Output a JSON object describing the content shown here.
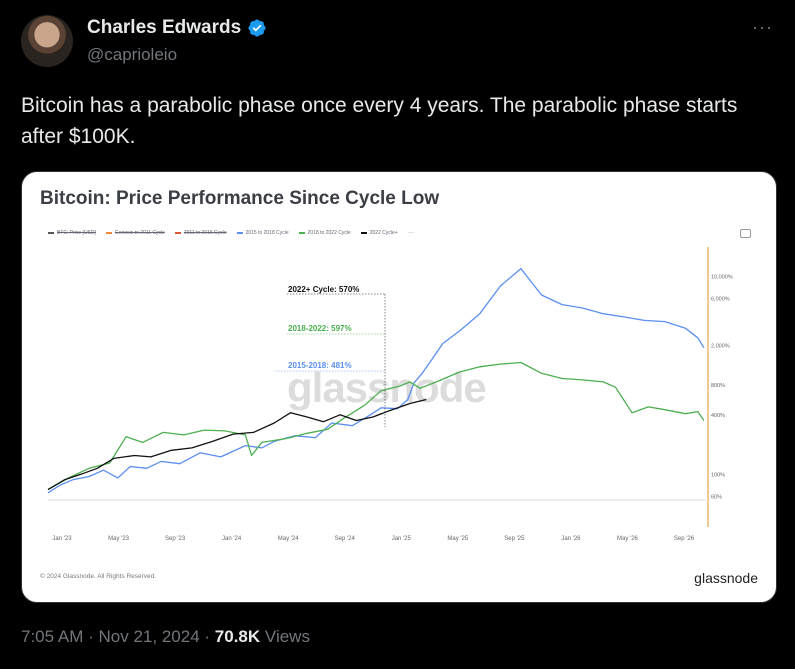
{
  "author": {
    "name": "Charles Edwards",
    "handle": "@caprioleio",
    "verified": true
  },
  "tweet": {
    "text": "Bitcoin has a parabolic phase once every 4 years. The parabolic phase starts after $100K."
  },
  "chart_card": {
    "title": "Bitcoin: Price Performance Since Cycle Low",
    "legend": [
      {
        "label": "BTC: Price [USD]",
        "color": "#555555",
        "struck": true
      },
      {
        "label": "Genesis to 2011 Cycle",
        "color": "#f0883e",
        "struck": true
      },
      {
        "label": "2011 to 2015 Cycle",
        "color": "#e0583a",
        "struck": true
      },
      {
        "label": "2015 to 2018 Cycle",
        "color": "#5b8ff0"
      },
      {
        "label": "2018 to 2022 Cycle",
        "color": "#4caf50"
      },
      {
        "label": "2022 Cycle+",
        "color": "#111111"
      }
    ],
    "watermark": "glassnode",
    "annotations": [
      {
        "label": "2022+ Cycle: 570%",
        "color": "#111111"
      },
      {
        "label": "2018-2022: 597%",
        "color": "#4caf50"
      },
      {
        "label": "2015-2018: 481%",
        "color": "#5b8ff0"
      }
    ],
    "copyright": "© 2024 Glassnode. All Rights Reserved.",
    "brand": "glassnode"
  },
  "chart_data": {
    "type": "line",
    "title": "Bitcoin: Price Performance Since Cycle Low",
    "x_ticks": [
      "Jan '23",
      "May '23",
      "Sep '23",
      "Jan '24",
      "May '24",
      "Sep '24",
      "Jan '25",
      "May '25",
      "Sep '25",
      "Jan '26",
      "May '26",
      "Sep '26"
    ],
    "y_ticks": [
      "10,000%",
      "6,000%",
      "2,000%",
      "800%",
      "400%",
      "100%",
      "60%"
    ],
    "y_scale": "log",
    "series": [
      {
        "name": "2015 to 2018 Cycle",
        "color": "#5b8ff0",
        "x": [
          0,
          0.6,
          1.2,
          2,
          2.7,
          3.4,
          4,
          4.8,
          5.5,
          6.4,
          7.4,
          8.4,
          9.6,
          10.4,
          11,
          12,
          13,
          13.8,
          14.8,
          15.6,
          16.2,
          17,
          17.5,
          17.8,
          18.2,
          18.6,
          19.2,
          20,
          21,
          22,
          23,
          24,
          25,
          26,
          27,
          28,
          29,
          30,
          31,
          31.6,
          31.9
        ],
        "y": [
          65,
          78,
          88,
          95,
          110,
          92,
          120,
          115,
          135,
          128,
          165,
          150,
          195,
          185,
          215,
          245,
          235,
          330,
          310,
          390,
          470,
          460,
          570,
          840,
          1050,
          1380,
          2100,
          2800,
          4200,
          8000,
          12000,
          6500,
          5200,
          4800,
          4200,
          3900,
          3600,
          3500,
          3000,
          2400,
          1900
        ]
      },
      {
        "name": "2018 to 2022 Cycle",
        "color": "#4caf50",
        "x": [
          0,
          1,
          2,
          3,
          3.8,
          4.6,
          5.6,
          6.6,
          7.6,
          8.6,
          9.6,
          9.9,
          10.4,
          11.6,
          12.6,
          13.6,
          14.4,
          15.4,
          16.2,
          17.1,
          17.6,
          18.1,
          19,
          20,
          21,
          22,
          23,
          24,
          25,
          26,
          27,
          27.6,
          28.4,
          29.2,
          30,
          31,
          31.6,
          31.9
        ],
        "y": [
          70,
          92,
          115,
          130,
          240,
          210,
          265,
          250,
          280,
          275,
          250,
          155,
          210,
          230,
          260,
          285,
          370,
          500,
          700,
          780,
          860,
          740,
          880,
          1080,
          1220,
          1300,
          1350,
          1050,
          930,
          900,
          860,
          760,
          420,
          480,
          450,
          410,
          430,
          350
        ]
      },
      {
        "name": "2022 Cycle+",
        "color": "#111111",
        "x": [
          0,
          0.8,
          1.6,
          2.4,
          3.2,
          4.2,
          5,
          6,
          7,
          8,
          9,
          10,
          11,
          11.8,
          12.6,
          13.4,
          14.2,
          15,
          15.8,
          16.6,
          17.6,
          18.4
        ],
        "y": [
          70,
          88,
          100,
          115,
          145,
          155,
          150,
          175,
          185,
          215,
          255,
          265,
          330,
          420,
          380,
          340,
          400,
          350,
          380,
          440,
          520,
          570
        ]
      }
    ]
  },
  "footer": {
    "time": "7:05 AM",
    "date": "Nov 21, 2024",
    "views_count": "70.8K",
    "views_label": "Views"
  }
}
